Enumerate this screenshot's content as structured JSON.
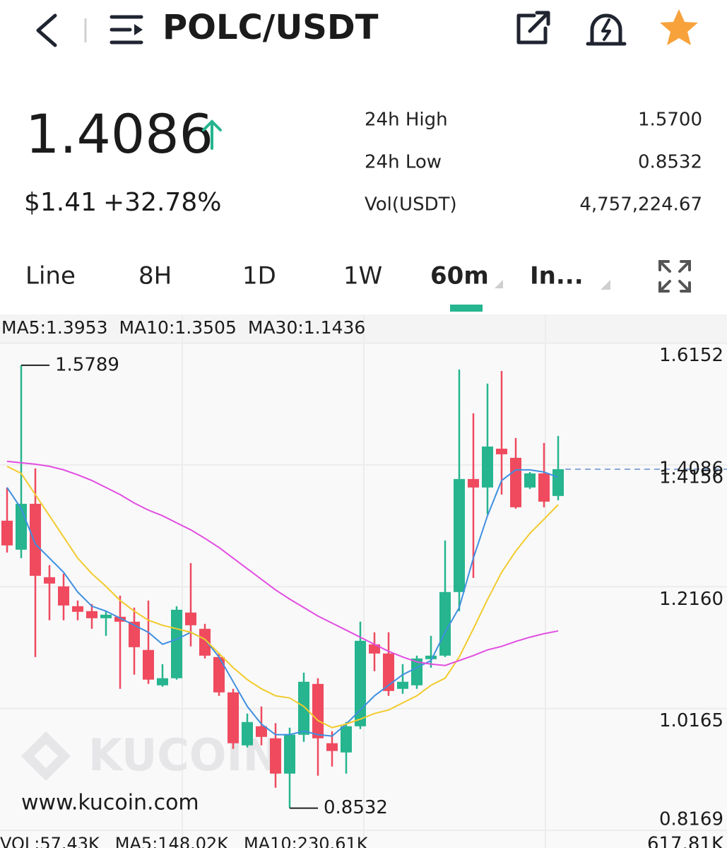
{
  "header": {
    "title": "POLC/USDT"
  },
  "price": {
    "last": "1.4086",
    "usd": "$1.41",
    "change": "+32.78%"
  },
  "stats": [
    {
      "label": "24h High",
      "value": "1.5700"
    },
    {
      "label": "24h Low",
      "value": "0.8532"
    },
    {
      "label": "Vol(USDT)",
      "value": "4,757,224.67"
    }
  ],
  "tabs": [
    "Line",
    "8H",
    "1D",
    "1W",
    "60m",
    "In..."
  ],
  "watermark": {
    "brand": "KUCOIN",
    "url": "www.kucoin.com"
  },
  "volume_legend": [
    "VOL:57.43K",
    "MA5:148.02K",
    "MA10:230.61K"
  ],
  "volume_axis_label": "617.81K",
  "chart_data": {
    "type": "candlestick",
    "up_color": "#26b58e",
    "down_color": "#ef4a5e",
    "ylim": [
      0.8169,
      1.6152
    ],
    "yticks": [
      1.6152,
      1.4156,
      {
        "value": 1.216,
        "label": "1.2160"
      },
      1.0165,
      0.8169
    ],
    "grid": true,
    "open": [
      1.3242,
      1.2767,
      1.3519,
      1.2316,
      1.2166,
      1.1841,
      1.176,
      1.1644,
      1.1668,
      1.1587,
      1.1124,
      1.0545,
      1.0661,
      1.1737,
      1.1471,
      1.1008,
      1.0429,
      0.9561,
      0.9874,
      0.9677,
      0.9098,
      0.9735,
      1.0568,
      0.9596,
      0.9445,
      0.9874,
      1.1216,
      1.1066,
      1.0487,
      1.0545,
      1.0973,
      1.1031,
      1.2073,
      1.3925,
      1.3786,
      1.4422,
      1.4272,
      1.3786,
      1.4017,
      1.3647
    ],
    "high": [
      1.3786,
      1.5789,
      1.4098,
      1.2513,
      1.2374,
      1.1934,
      1.1876,
      1.176,
      1.2015,
      1.1818,
      1.1934,
      1.0892,
      1.1841,
      1.2547,
      1.1552,
      1.1066,
      1.0487,
      1.0082,
      1.0198,
      0.9924,
      0.985,
      1.0753,
      1.0661,
      0.9793,
      0.9943,
      1.1587,
      1.1413,
      1.1413,
      1.0892,
      1.1031,
      1.1355,
      1.2918,
      1.5718,
      1.5001,
      1.5487,
      1.5695,
      1.4596,
      1.404,
      1.4515,
      1.4631
    ],
    "low": [
      1.2721,
      1.2628,
      1.1008,
      1.161,
      1.161,
      1.161,
      1.1471,
      1.1355,
      1.0487,
      1.0719,
      1.0568,
      1.0522,
      1.0638,
      1.1182,
      1.0985,
      1.0371,
      0.9503,
      0.9526,
      0.9561,
      0.8867,
      0.8532,
      0.9619,
      0.9063,
      0.9214,
      0.9098,
      0.9827,
      1.0776,
      1.0371,
      1.0406,
      1.0487,
      1.0834,
      1.1008,
      1.176,
      1.2304,
      1.3346,
      1.367,
      1.3439,
      1.3763,
      1.3462,
      1.3577
    ],
    "close": [
      1.2837,
      1.3519,
      1.2339,
      1.2212,
      1.1853,
      1.1749,
      1.1644,
      1.1702,
      1.1587,
      1.117,
      1.0638,
      1.0661,
      1.1783,
      1.1529,
      1.1031,
      1.0429,
      0.9596,
      0.9943,
      0.97,
      0.9098,
      0.9735,
      1.0603,
      0.9677,
      0.9469,
      0.9874,
      1.1274,
      1.1066,
      1.0452,
      1.0603,
      1.0985,
      1.1031,
      1.2073,
      1.3925,
      1.3786,
      1.4457,
      1.433,
      1.3462,
      1.4017,
      1.3554,
      1.4086
    ],
    "series": [
      {
        "name": "MA5:1.3953",
        "color": "#3f8fe0",
        "values": [
          1.3786,
          1.3439,
          1.286,
          1.2629,
          1.2397,
          1.2073,
          1.1842,
          1.1761,
          1.1645,
          1.1529,
          1.1414,
          1.1217,
          1.1298,
          1.1414,
          1.1298,
          1.1009,
          1.0604,
          1.0199,
          0.991,
          0.9736,
          0.9736,
          0.9794,
          0.9736,
          0.9713,
          0.991,
          1.0141,
          1.0373,
          1.0546,
          1.072,
          1.0835,
          1.0951,
          1.1414,
          1.1819,
          1.2629,
          1.3323,
          1.3901,
          1.4075,
          1.4075,
          1.404,
          1.3953
        ]
      },
      {
        "name": "MA10:1.3505",
        "color": "#f2cb2c",
        "values": [
          1.4133,
          1.4017,
          1.367,
          1.3323,
          1.2976,
          1.2629,
          1.2374,
          1.2166,
          1.1935,
          1.1761,
          1.1611,
          1.1529,
          1.1472,
          1.1414,
          1.1298,
          1.1067,
          1.0835,
          1.0639,
          1.0488,
          1.0373,
          1.0338,
          1.0199,
          0.9968,
          0.9852,
          0.991,
          0.9991,
          1.0083,
          1.0141,
          1.0257,
          1.0373,
          1.0546,
          1.0662,
          1.1009,
          1.1472,
          1.195,
          1.2397,
          1.2744,
          1.3034,
          1.3265,
          1.3505
        ]
      },
      {
        "name": "MA30:1.1436",
        "color": "#e24ee0",
        "values": [
          1.4214,
          1.4191,
          1.4168,
          1.4133,
          1.4075,
          1.3994,
          1.3901,
          1.3786,
          1.367,
          1.3531,
          1.3415,
          1.3323,
          1.3207,
          1.3092,
          1.2953,
          1.2802,
          1.2629,
          1.2455,
          1.2282,
          1.2108,
          1.1958,
          1.1819,
          1.168,
          1.1564,
          1.1449,
          1.1333,
          1.1217,
          1.1102,
          1.1009,
          1.0928,
          1.0893,
          1.087,
          1.0951,
          1.1032,
          1.1125,
          1.1183,
          1.1264,
          1.1333,
          1.1391,
          1.1436
        ]
      }
    ]
  }
}
